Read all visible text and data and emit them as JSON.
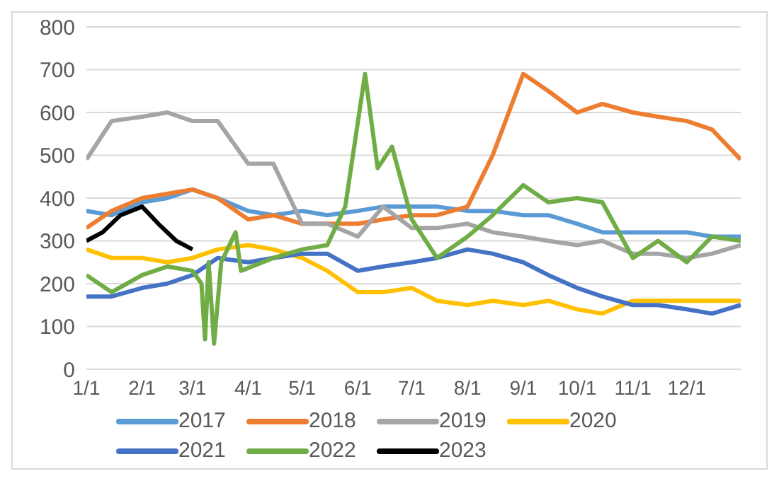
{
  "chart_data": {
    "type": "line",
    "x": [
      "--01-01",
      "--01-15",
      "--02-01",
      "--02-15",
      "--03-01",
      "--03-15",
      "--04-01",
      "--04-15",
      "--05-01",
      "--05-15",
      "--06-01",
      "--06-15",
      "--07-01",
      "--07-15",
      "--08-01",
      "--08-15",
      "--09-01",
      "--09-15",
      "--10-01",
      "--10-15",
      "--11-01",
      "--11-15",
      "--12-01",
      "--12-15",
      "--12-31"
    ],
    "series": [
      {
        "name": "2017",
        "color": "#5b9bd5",
        "values": [
          370,
          360,
          390,
          400,
          420,
          400,
          370,
          360,
          370,
          360,
          370,
          380,
          380,
          380,
          370,
          370,
          360,
          360,
          340,
          320,
          320,
          320,
          320,
          310,
          310
        ]
      },
      {
        "name": "2018",
        "color": "#ed7d31",
        "values": [
          330,
          370,
          400,
          410,
          420,
          400,
          350,
          360,
          340,
          340,
          340,
          350,
          360,
          360,
          380,
          500,
          690,
          650,
          600,
          620,
          600,
          590,
          580,
          560,
          490
        ]
      },
      {
        "name": "2019",
        "color": "#a5a5a5",
        "values": [
          490,
          580,
          590,
          600,
          580,
          580,
          480,
          480,
          340,
          340,
          310,
          380,
          330,
          330,
          340,
          320,
          310,
          300,
          290,
          300,
          270,
          270,
          260,
          270,
          290
        ]
      },
      {
        "name": "2020",
        "color": "#ffc000",
        "values": [
          280,
          260,
          260,
          250,
          260,
          280,
          290,
          280,
          260,
          230,
          180,
          180,
          190,
          160,
          150,
          160,
          150,
          160,
          140,
          130,
          160,
          160,
          160,
          160,
          160
        ]
      },
      {
        "name": "2021",
        "color": "#4472c4",
        "values": [
          170,
          170,
          190,
          200,
          220,
          260,
          250,
          260,
          270,
          270,
          230,
          240,
          250,
          260,
          280,
          270,
          250,
          220,
          190,
          170,
          150,
          150,
          140,
          130,
          150
        ]
      },
      {
        "name": "2022",
        "color": "#70ad47",
        "x": [
          "--01-01",
          "--01-15",
          "--02-01",
          "--02-15",
          "--03-01",
          "--03-06",
          "--03-08",
          "--03-10",
          "--03-13",
          "--03-17",
          "--03-25",
          "--03-28",
          "--04-15",
          "--05-01",
          "--05-15",
          "--05-25",
          "--06-05",
          "--06-12",
          "--06-20",
          "--07-01",
          "--07-15",
          "--08-01",
          "--08-15",
          "--09-01",
          "--09-15",
          "--10-01",
          "--10-15",
          "--11-01",
          "--11-15",
          "--12-01",
          "--12-15",
          "--12-31"
        ],
        "values": [
          220,
          180,
          220,
          240,
          230,
          200,
          70,
          250,
          60,
          250,
          320,
          230,
          260,
          280,
          290,
          380,
          690,
          470,
          520,
          350,
          260,
          310,
          360,
          430,
          390,
          400,
          390,
          260,
          300,
          250,
          310,
          300
        ]
      },
      {
        "name": "2023",
        "color": "#000000",
        "x": [
          "--01-01",
          "--01-10",
          "--01-20",
          "--02-01",
          "--02-10",
          "--02-20",
          "--03-01"
        ],
        "values": [
          300,
          320,
          360,
          380,
          340,
          300,
          280
        ]
      }
    ],
    "xlim": [
      "--01-01",
      "--12-31"
    ],
    "xticks": [
      {
        "value": "--01-01",
        "label": "1/1"
      },
      {
        "value": "--02-01",
        "label": "2/1"
      },
      {
        "value": "--03-01",
        "label": "3/1"
      },
      {
        "value": "--04-01",
        "label": "4/1"
      },
      {
        "value": "--05-01",
        "label": "5/1"
      },
      {
        "value": "--06-01",
        "label": "6/1"
      },
      {
        "value": "--07-01",
        "label": "7/1"
      },
      {
        "value": "--08-01",
        "label": "8/1"
      },
      {
        "value": "--09-01",
        "label": "9/1"
      },
      {
        "value": "--10-01",
        "label": "10/1"
      },
      {
        "value": "--11-01",
        "label": "11/1"
      },
      {
        "value": "--12-01",
        "label": "12/1"
      }
    ],
    "ylim": [
      0,
      800
    ],
    "yticks": [
      0,
      100,
      200,
      300,
      400,
      500,
      600,
      700,
      800
    ],
    "grid": "y",
    "legend": "bottom",
    "marker": "none",
    "line_style": "solid"
  }
}
